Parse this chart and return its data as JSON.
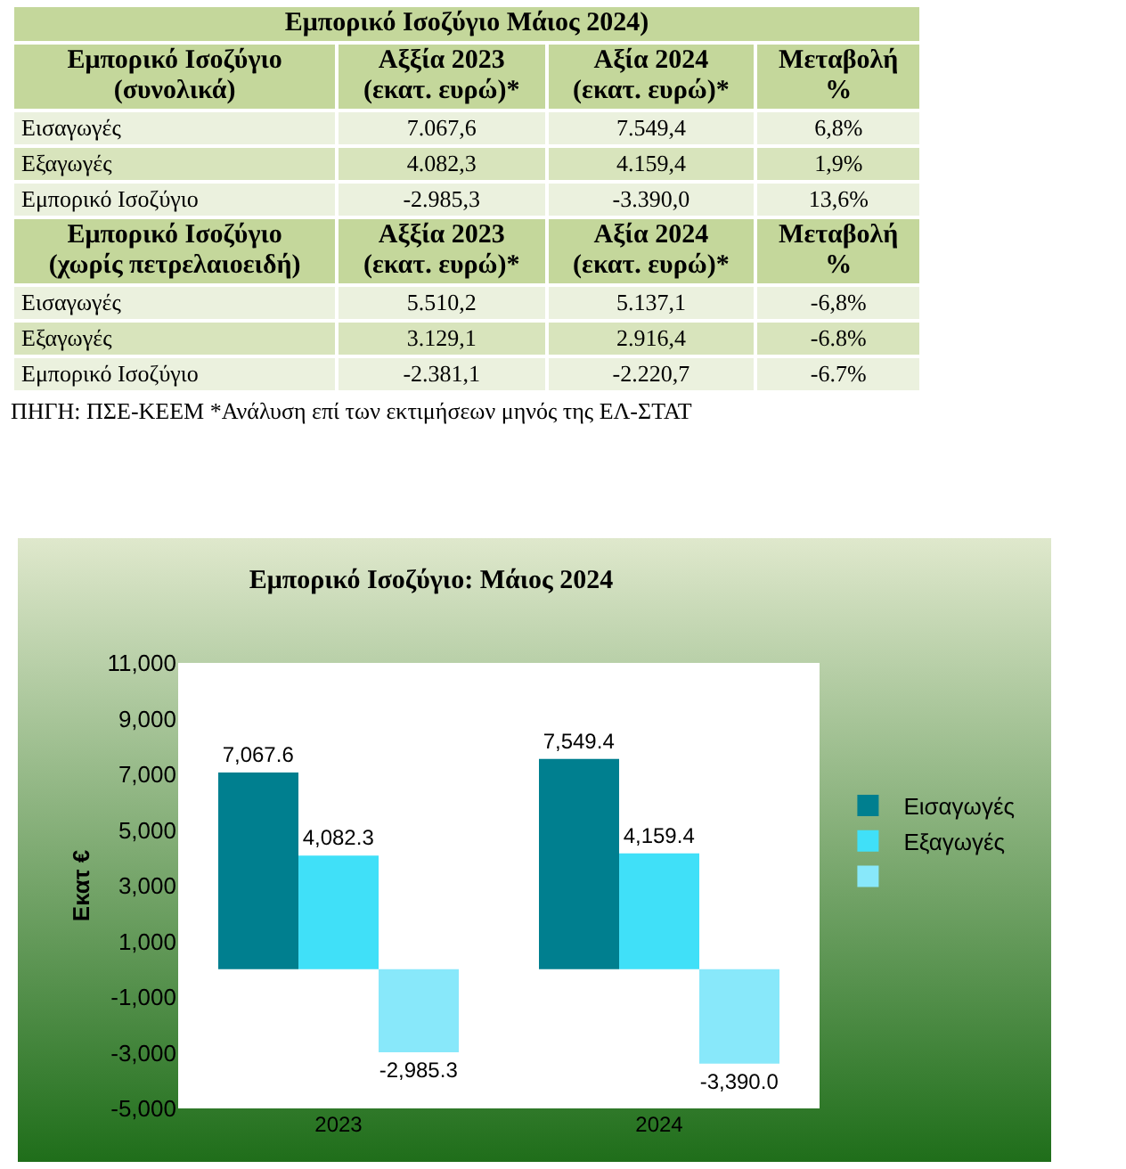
{
  "chart_data": [
    {
      "type": "other",
      "title": "Εμπορικό Ισοζύγιο Μάιος 2024)",
      "annotations": [
        "Εμπορικό Ισοζύγιο\n(συνολικά)",
        "Αξξία 2023\n(εκατ. ευρώ)*",
        "Αξία 2024\n(εκατ. ευρώ)*",
        "Μεταβολή\n%",
        "Εισαγωγές",
        "7.067,6",
        "7.549,4",
        "6,8%",
        "Εξαγωγές",
        "4.082,3",
        "4.159,4",
        "1,9%",
        "Εμπορικό Ισοζύγιο",
        "-2.985,3",
        "-3.390,0",
        "13,6%",
        "Εμπορικό Ισοζύγιο\n(χωρίς πετρελαιοειδή)",
        "Αξξία 2023\n(εκατ. ευρώ)*",
        "Αξία 2024\n(εκατ. ευρώ)*",
        "Μεταβολή\n%",
        "Εισαγωγές",
        "5.510,2",
        "5.137,1",
        "-6,8%",
        "Εξαγωγές",
        "3.129,1",
        "2.916,4",
        "-6.8%",
        "Εμπορικό Ισοζύγιο",
        "-2.381,1",
        "-2.220,7",
        "-6.7%",
        "ΠΗΓΗ: ΠΣΕ-ΚΕΕΜ *Ανάλυση επί των εκτιμήσεων μηνός της ΕΛ-ΣΤΑΤ"
      ]
    },
    {
      "type": "bar",
      "title": "Εμπορικό Ισοζύγιο: Μάιος 2024",
      "ylabel": "Εκατ €",
      "categories": [
        "2023",
        "2024"
      ],
      "series": [
        {
          "name": "Εισαγωγές",
          "color": "#007f8f",
          "values": [
            7067.6,
            7549.4
          ],
          "value_labels": [
            "7,067.6",
            "7,549.4"
          ]
        },
        {
          "name": "Εξαγωγές",
          "color": "#40e0f8",
          "values": [
            4082.3,
            4159.4
          ],
          "value_labels": [
            "4,082.3",
            "4,159.4"
          ]
        },
        {
          "color": "#88e8fa",
          "values": [
            -2985.3,
            -3390.0
          ],
          "value_labels": [
            "-2,985.3",
            "-3,390.0"
          ]
        }
      ],
      "ylim": [
        -5000,
        11000
      ],
      "yticks": [
        {
          "value": -5000,
          "label": "-5,000"
        },
        {
          "value": -3000,
          "label": "-3,000"
        },
        {
          "value": -1000,
          "label": "-1,000"
        },
        {
          "value": 1000,
          "label": "1,000"
        },
        {
          "value": 3000,
          "label": "3,000"
        },
        {
          "value": 5000,
          "label": "5,000"
        },
        {
          "value": 7000,
          "label": "7,000"
        },
        {
          "value": 9000,
          "label": "9,000"
        },
        {
          "value": 11000,
          "label": "11,000"
        }
      ],
      "grid": false,
      "legend": "right"
    }
  ]
}
